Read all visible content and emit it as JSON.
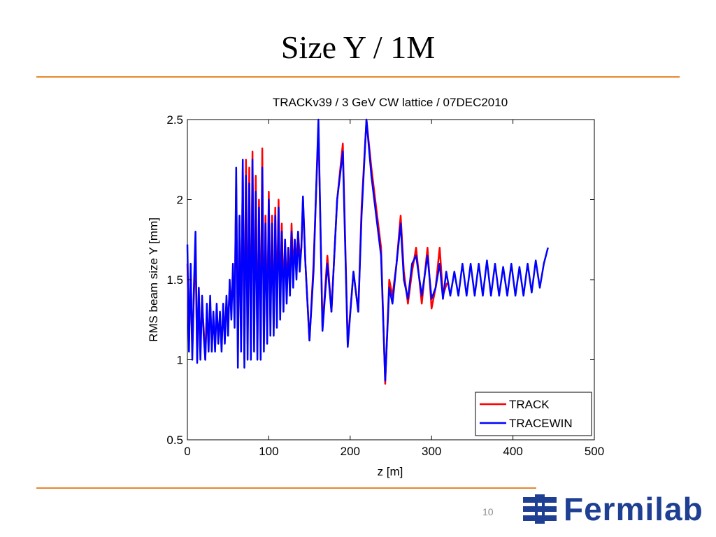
{
  "slide": {
    "title": "Size Y / 1M",
    "page_number": "10",
    "accent_color": "#e8872e"
  },
  "logo": {
    "text": "Fermilab",
    "color": "#1f3f93",
    "icon": "fermilab-logo-icon"
  },
  "chart_data": {
    "type": "line",
    "title": "TRACKv39 / 3 GeV CW lattice / 07DEC2010",
    "xlabel": "z [m]",
    "ylabel": "RMS beam size Y [mm]",
    "xlim": [
      0,
      500
    ],
    "ylim": [
      0.5,
      2.5
    ],
    "xticks": [
      0,
      100,
      200,
      300,
      400,
      500
    ],
    "yticks": [
      0.5,
      1,
      1.5,
      2,
      2.5
    ],
    "xtick_labels": [
      "0",
      "100",
      "200",
      "300",
      "400",
      "500"
    ],
    "ytick_labels": [
      "0.5",
      "1",
      "1.5",
      "2",
      "2.5"
    ],
    "grid": false,
    "legend_position": "bottom-right",
    "series": [
      {
        "name": "TRACK",
        "color": "#ff0000",
        "x": [
          0,
          2,
          4,
          6,
          8,
          10,
          12,
          14,
          16,
          18,
          20,
          22,
          24,
          26,
          28,
          30,
          32,
          34,
          36,
          38,
          40,
          42,
          44,
          46,
          48,
          50,
          52,
          54,
          56,
          58,
          60,
          62,
          64,
          66,
          68,
          70,
          72,
          74,
          76,
          78,
          80,
          82,
          84,
          86,
          88,
          90,
          92,
          94,
          96,
          98,
          100,
          102,
          104,
          106,
          108,
          110,
          112,
          114,
          116,
          118,
          120,
          122,
          124,
          126,
          128,
          130,
          132,
          134,
          136,
          138,
          140,
          142,
          145,
          150,
          155,
          161,
          166,
          172,
          177,
          184,
          191,
          197,
          204,
          210,
          214,
          220,
          226,
          232,
          238,
          243,
          248,
          252,
          257,
          262,
          266,
          271,
          276,
          281,
          288,
          295,
          300,
          305,
          310,
          314,
          317,
          319
        ],
        "y": [
          1.6,
          1.1,
          1.55,
          1.05,
          1.4,
          1.7,
          1.0,
          1.45,
          1.05,
          1.35,
          1.2,
          1.0,
          1.3,
          1.1,
          1.35,
          1.1,
          1.25,
          1.1,
          1.3,
          1.15,
          1.25,
          1.1,
          1.3,
          1.2,
          1.35,
          1.25,
          1.45,
          1.35,
          1.55,
          1.3,
          2.1,
          1.05,
          1.85,
          1.15,
          2.2,
          1.0,
          2.25,
          1.1,
          2.2,
          1.05,
          2.3,
          1.15,
          2.15,
          1.05,
          2.0,
          1.1,
          2.32,
          1.1,
          1.9,
          1.15,
          2.05,
          1.25,
          1.9,
          1.2,
          1.95,
          1.3,
          2.0,
          1.35,
          1.85,
          1.4,
          1.75,
          1.45,
          1.7,
          1.5,
          1.85,
          1.55,
          1.75,
          1.6,
          1.8,
          1.65,
          1.7,
          2.0,
          1.6,
          1.12,
          1.6,
          2.45,
          1.2,
          1.65,
          1.3,
          2.0,
          2.35,
          1.1,
          1.55,
          1.3,
          1.95,
          2.5,
          2.2,
          1.95,
          1.7,
          0.85,
          1.5,
          1.4,
          1.6,
          1.9,
          1.55,
          1.35,
          1.55,
          1.7,
          1.35,
          1.7,
          1.32,
          1.45,
          1.7,
          1.4,
          1.45,
          1.48
        ]
      },
      {
        "name": "TRACEWIN",
        "color": "#0000ff",
        "x": [
          0,
          2,
          4,
          6,
          8,
          10,
          12,
          14,
          16,
          18,
          20,
          22,
          24,
          26,
          28,
          30,
          32,
          34,
          36,
          38,
          40,
          42,
          44,
          46,
          48,
          50,
          52,
          54,
          56,
          58,
          60,
          62,
          64,
          66,
          68,
          70,
          72,
          74,
          76,
          78,
          80,
          82,
          84,
          86,
          88,
          90,
          92,
          94,
          96,
          98,
          100,
          102,
          104,
          106,
          108,
          110,
          112,
          114,
          116,
          118,
          120,
          122,
          124,
          126,
          128,
          130,
          132,
          134,
          136,
          138,
          140,
          142,
          145,
          150,
          155,
          161,
          166,
          172,
          177,
          184,
          191,
          197,
          204,
          210,
          214,
          220,
          226,
          232,
          238,
          243,
          248,
          252,
          257,
          262,
          266,
          271,
          276,
          281,
          288,
          295,
          300,
          305,
          310,
          314,
          318,
          323,
          328,
          333,
          338,
          343,
          348,
          353,
          358,
          363,
          368,
          373,
          378,
          383,
          388,
          393,
          398,
          403,
          408,
          413,
          418,
          423,
          428,
          433,
          438,
          443
        ],
        "y": [
          1.72,
          1.05,
          1.6,
          1.0,
          1.45,
          1.8,
          0.98,
          1.45,
          1.0,
          1.4,
          1.15,
          1.0,
          1.35,
          1.05,
          1.4,
          1.05,
          1.3,
          1.05,
          1.35,
          1.1,
          1.3,
          1.05,
          1.35,
          1.1,
          1.4,
          1.15,
          1.5,
          1.25,
          1.6,
          1.2,
          2.2,
          0.95,
          1.9,
          1.05,
          2.25,
          0.95,
          2.15,
          1.0,
          2.1,
          1.0,
          2.25,
          1.05,
          2.05,
          1.0,
          1.95,
          1.0,
          2.2,
          1.05,
          1.85,
          1.1,
          2.0,
          1.15,
          1.85,
          1.15,
          1.9,
          1.2,
          1.95,
          1.25,
          1.8,
          1.3,
          1.75,
          1.35,
          1.7,
          1.4,
          1.8,
          1.45,
          1.75,
          1.5,
          1.8,
          1.55,
          1.7,
          2.02,
          1.6,
          1.12,
          1.55,
          2.5,
          1.18,
          1.6,
          1.3,
          2.0,
          2.3,
          1.08,
          1.55,
          1.3,
          1.9,
          2.5,
          2.15,
          1.9,
          1.65,
          0.87,
          1.45,
          1.35,
          1.6,
          1.85,
          1.5,
          1.38,
          1.6,
          1.65,
          1.4,
          1.65,
          1.38,
          1.45,
          1.6,
          1.38,
          1.55,
          1.4,
          1.55,
          1.4,
          1.6,
          1.4,
          1.6,
          1.4,
          1.6,
          1.4,
          1.62,
          1.4,
          1.6,
          1.4,
          1.58,
          1.4,
          1.6,
          1.4,
          1.58,
          1.4,
          1.6,
          1.42,
          1.62,
          1.45,
          1.6,
          1.7
        ]
      }
    ]
  }
}
